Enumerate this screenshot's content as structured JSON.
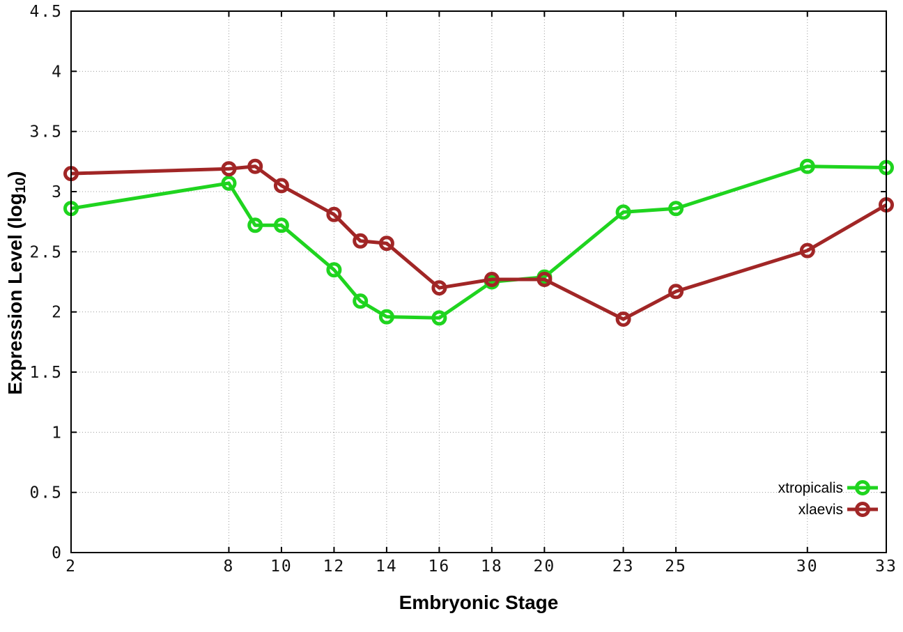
{
  "chart_data": {
    "type": "line",
    "title": "",
    "xlabel": "Embryonic Stage",
    "ylabel_prefix": "Expression Level (log",
    "ylabel_sub": "10",
    "ylabel_suffix": ")",
    "xlim": [
      2,
      33
    ],
    "ylim": [
      0,
      4.5
    ],
    "grid": true,
    "legend_position": "inside-bottom-right",
    "xtick_values": [
      2,
      8,
      10,
      12,
      14,
      16,
      18,
      20,
      23,
      25,
      30,
      33
    ],
    "xtick_labels": [
      "2",
      "8",
      "10",
      "12",
      "14",
      "16",
      "18",
      "20",
      "23",
      "25",
      "30",
      "33"
    ],
    "ytick_values": [
      0,
      0.5,
      1,
      1.5,
      2,
      2.5,
      3,
      3.5,
      4,
      4.5
    ],
    "ytick_labels": [
      "0",
      "0.5",
      "1",
      "1.5",
      "2",
      "2.5",
      "3",
      "3.5",
      "4",
      "4.5"
    ],
    "x": [
      2,
      8,
      9,
      10,
      12,
      13,
      14,
      16,
      18,
      20,
      23,
      25,
      30,
      33
    ],
    "series": [
      {
        "name": "xtropicalis",
        "color": "#1FD41F",
        "values": [
          2.86,
          3.07,
          2.72,
          2.72,
          2.35,
          2.09,
          1.96,
          1.95,
          2.25,
          2.29,
          2.83,
          2.86,
          3.21,
          3.2
        ]
      },
      {
        "name": "xlaevis",
        "color": "#A12626",
        "values": [
          3.15,
          3.19,
          3.21,
          3.05,
          2.81,
          2.59,
          2.57,
          2.2,
          2.27,
          2.27,
          1.94,
          2.17,
          2.51,
          2.89
        ]
      }
    ],
    "marker": "open-circle",
    "grid_color": "#999999",
    "border_color": "#000000"
  }
}
